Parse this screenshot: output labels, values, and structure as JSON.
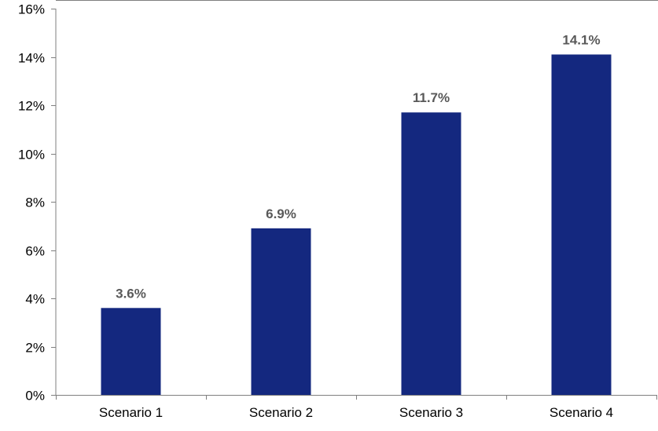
{
  "chart_data": {
    "type": "bar",
    "title": "",
    "xlabel": "",
    "ylabel": "",
    "categories": [
      "Scenario 1",
      "Scenario 2",
      "Scenario 3",
      "Scenario 4"
    ],
    "values": [
      3.6,
      6.9,
      11.7,
      14.1
    ],
    "data_labels": [
      "3.6%",
      "6.9%",
      "11.7%",
      "14.1%"
    ],
    "ylim": [
      0,
      16
    ],
    "y_ticks": [
      0,
      2,
      4,
      6,
      8,
      10,
      12,
      14,
      16
    ],
    "y_tick_labels": [
      "0%",
      "2%",
      "4%",
      "6%",
      "8%",
      "10%",
      "12%",
      "14%",
      "16%"
    ],
    "grid": false,
    "legend": "none",
    "colors": {
      "bar": "#14287f",
      "axis": "#7f7f7f",
      "data_label": "#595959"
    }
  }
}
